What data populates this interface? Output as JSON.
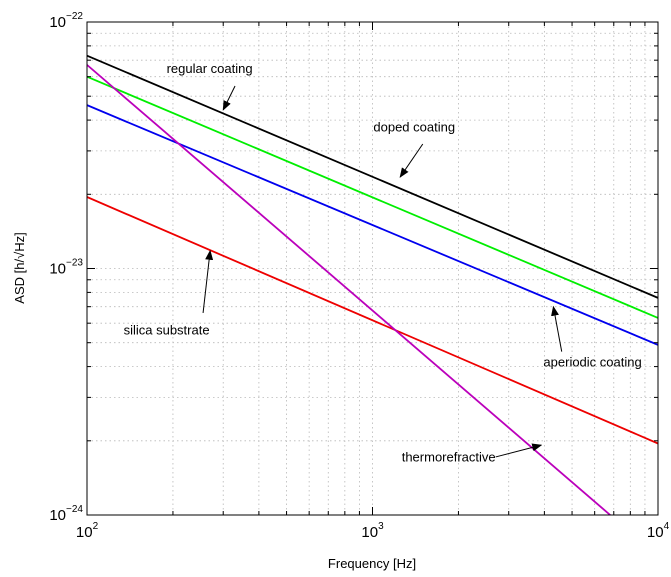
{
  "chart_data": {
    "type": "line",
    "title": "",
    "xlabel": "Frequency [Hz]",
    "ylabel": "ASD [h/√Hz]",
    "xscale": "log",
    "yscale": "log",
    "xlim": [
      100,
      10000
    ],
    "ylim": [
      1e-24,
      1e-22
    ],
    "grid": true,
    "x_ticks": [
      {
        "value": 100,
        "base": "10",
        "exp": "2"
      },
      {
        "value": 1000,
        "base": "10",
        "exp": "3"
      },
      {
        "value": 10000,
        "base": "10",
        "exp": "4"
      }
    ],
    "y_ticks": [
      {
        "value": 1e-24,
        "base": "10",
        "exp": "−24"
      },
      {
        "value": 1e-23,
        "base": "10",
        "exp": "−23"
      },
      {
        "value": 1e-22,
        "base": "10",
        "exp": "−22"
      }
    ],
    "series": [
      {
        "key": "regular",
        "color": "#000000",
        "x": [
          100,
          10000
        ],
        "y": [
          7.3e-23,
          7.6e-24
        ]
      },
      {
        "key": "doped",
        "color": "#00ee00",
        "x": [
          100,
          10000
        ],
        "y": [
          6e-23,
          6.3e-24
        ]
      },
      {
        "key": "aperiodic",
        "color": "#0000ee",
        "x": [
          100,
          10000
        ],
        "y": [
          4.6e-23,
          4.9e-24
        ]
      },
      {
        "key": "silica",
        "color": "#ee0000",
        "x": [
          100,
          10000
        ],
        "y": [
          1.95e-23,
          1.95e-24
        ]
      },
      {
        "key": "thermorefractive",
        "color": "#bb00bb",
        "x": [
          100,
          6800
        ],
        "y": [
          6.7e-23,
          1e-24
        ]
      }
    ],
    "annotations": [
      {
        "text": "regular coating",
        "text_at": [
          190,
          6.2e-23
        ],
        "anchor": "start",
        "arrow_from": [
          330,
          5.5e-23
        ],
        "arrow_to": [
          300,
          4.4e-23
        ]
      },
      {
        "text": "doped coating",
        "text_at": [
          1400,
          3.6e-23
        ],
        "anchor": "middle",
        "arrow_from": [
          1500,
          3.2e-23
        ],
        "arrow_to": [
          1250,
          2.35e-23
        ]
      },
      {
        "text": "silica substrate",
        "text_at": [
          190,
          5.4e-24
        ],
        "anchor": "middle",
        "arrow_from": [
          255,
          6.6e-24
        ],
        "arrow_to": [
          270,
          1.18e-23
        ]
      },
      {
        "text": "aperiodic coating",
        "text_at": [
          5900,
          4e-24
        ],
        "anchor": "middle",
        "arrow_from": [
          4600,
          4.6e-24
        ],
        "arrow_to": [
          4300,
          7e-24
        ]
      },
      {
        "text": "thermorefractive",
        "text_at": [
          2700,
          1.65e-24
        ],
        "anchor": "end",
        "arrow_from": [
          2700,
          1.72e-24
        ],
        "arrow_to": [
          3900,
          1.92e-24
        ]
      }
    ]
  }
}
